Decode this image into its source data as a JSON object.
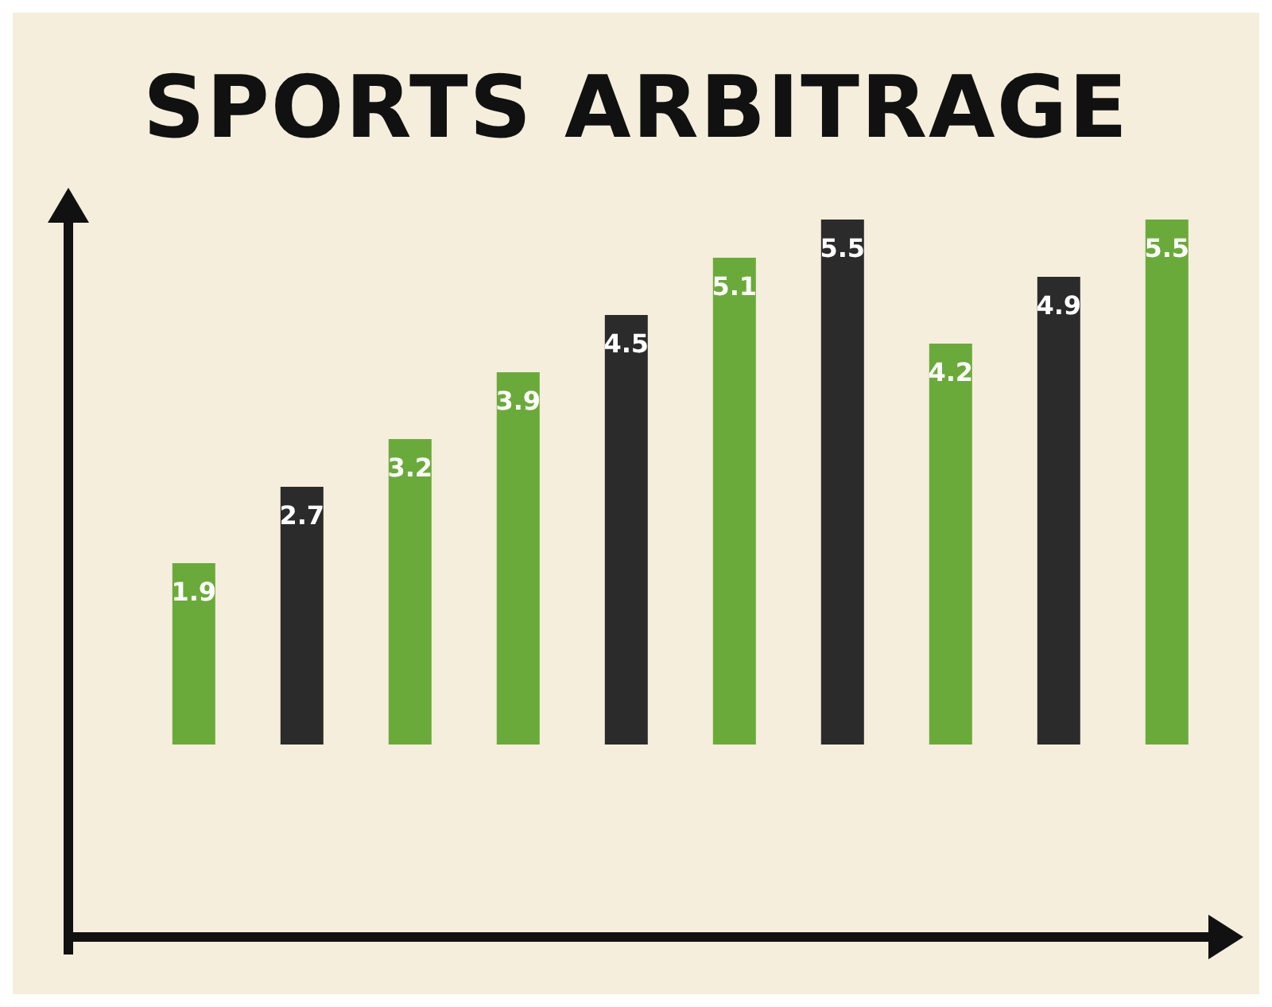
{
  "chart_data": {
    "type": "bar",
    "title": "SPORTS ARBITRAGE",
    "categories": [
      null,
      null,
      null,
      null,
      null,
      null,
      null,
      null,
      null,
      null
    ],
    "values": [
      1.9,
      2.7,
      3.2,
      3.9,
      4.5,
      5.1,
      5.5,
      4.2,
      4.9,
      5.5
    ],
    "colors": [
      "#6aaa3a",
      "#2b2b2b",
      "#6aaa3a",
      "#6aaa3a",
      "#2b2b2b",
      "#6aaa3a",
      "#2b2b2b",
      "#6aaa3a",
      "#2b2b2b",
      "#6aaa3a"
    ],
    "data_labels": true,
    "grid": false,
    "legend": false
  }
}
